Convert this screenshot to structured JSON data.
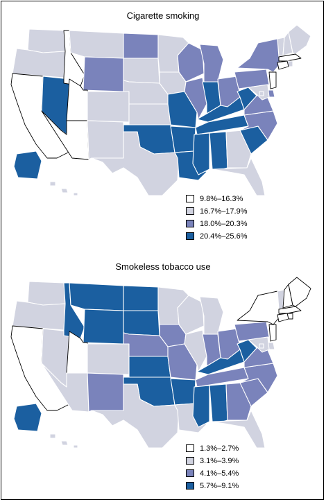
{
  "colors": {
    "class1": "#ffffff",
    "class2": "#d1d3e0",
    "class3": "#7a83bb",
    "class4": "#1b5fa0"
  },
  "panels": [
    {
      "title": "Cigarette smoking",
      "legend": [
        {
          "label": "9.8%–16.3%",
          "class": "class1"
        },
        {
          "label": "16.7%–17.9%",
          "class": "class2"
        },
        {
          "label": "18.0%–20.3%",
          "class": "class3"
        },
        {
          "label": "20.4%–25.6%",
          "class": "class4"
        }
      ],
      "states": {
        "WA": "class2",
        "OR": "class2",
        "CA": "class1",
        "NV": "class4",
        "ID": "class1",
        "MT": "class2",
        "WY": "class3",
        "UT": "class1",
        "AZ": "class1",
        "CO": "class2",
        "NM": "class2",
        "ND": "class3",
        "SD": "class2",
        "NE": "class2",
        "KS": "class2",
        "OK": "class4",
        "TX": "class2",
        "MN": "class2",
        "IA": "class2",
        "MO": "class4",
        "AR": "class4",
        "LA": "class4",
        "WI": "class3",
        "IL": "class3",
        "MI": "class3",
        "IN": "class4",
        "OH": "class3",
        "KY": "class4",
        "TN": "class4",
        "MS": "class4",
        "AL": "class4",
        "GA": "class2",
        "FL": "class2",
        "SC": "class4",
        "NC": "class3",
        "VA": "class3",
        "WV": "class4",
        "PA": "class3",
        "NY": "class3",
        "VT": "class2",
        "NH": "class2",
        "ME": "class2",
        "MA": "class1",
        "RI": "class2",
        "CT": "class1",
        "NJ": "class1",
        "DE": "class3",
        "MD": "class2",
        "DC": "class2",
        "AK": "class4",
        "HI": "class2"
      }
    },
    {
      "title": "Smokeless tobacco use",
      "legend": [
        {
          "label": "1.3%–2.7%",
          "class": "class1"
        },
        {
          "label": "3.1%–3.9%",
          "class": "class2"
        },
        {
          "label": "4.1%–5.4%",
          "class": "class3"
        },
        {
          "label": "5.7%–9.1%",
          "class": "class4"
        }
      ],
      "states": {
        "WA": "class2",
        "OR": "class2",
        "CA": "class1",
        "NV": "class2",
        "ID": "class4",
        "MT": "class4",
        "WY": "class4",
        "UT": "class1",
        "AZ": "class2",
        "CO": "class2",
        "NM": "class3",
        "ND": "class4",
        "SD": "class4",
        "NE": "class3",
        "KS": "class4",
        "OK": "class4",
        "TX": "class2",
        "MN": "class2",
        "IA": "class3",
        "MO": "class3",
        "AR": "class4",
        "LA": "class2",
        "WI": "class2",
        "IL": "class2",
        "MI": "class2",
        "IN": "class3",
        "OH": "class3",
        "KY": "class4",
        "TN": "class3",
        "MS": "class4",
        "AL": "class4",
        "GA": "class3",
        "FL": "class2",
        "SC": "class3",
        "NC": "class3",
        "VA": "class3",
        "WV": "class4",
        "PA": "class3",
        "NY": "class1",
        "VT": "class2",
        "NH": "class1",
        "ME": "class1",
        "MA": "class1",
        "RI": "class1",
        "CT": "class1",
        "NJ": "class1",
        "DE": "class2",
        "MD": "class2",
        "DC": "class2",
        "AK": "class4",
        "HI": "class2"
      }
    }
  ]
}
